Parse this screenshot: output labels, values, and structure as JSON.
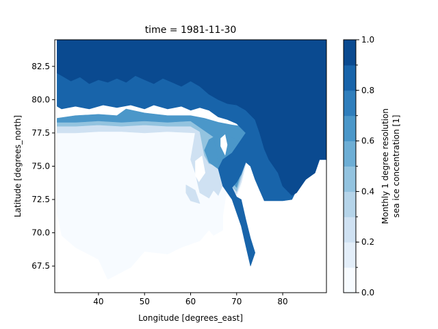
{
  "chart_data": {
    "type": "heatmap",
    "title": "time = 1981-11-30",
    "xlabel": "Longitude [degrees_east]",
    "ylabel": "Latitude [degrees_north]",
    "xlim": [
      30.5,
      89.5
    ],
    "ylim": [
      65.5,
      84.5
    ],
    "xticks": [
      40,
      50,
      60,
      70,
      80
    ],
    "xtick_labels": [
      "40",
      "50",
      "60",
      "70",
      "80"
    ],
    "yticks": [
      67.5,
      70.0,
      72.5,
      75.0,
      77.5,
      80.0,
      82.5
    ],
    "ytick_labels": [
      "67.5",
      "70.0",
      "72.5",
      "75.0",
      "77.5",
      "80.0",
      "82.5"
    ],
    "colorbar": {
      "label_line1": "Monthly 1 degree resolution",
      "label_line2": "sea ice concentration [1]",
      "range": [
        0.0,
        1.0
      ],
      "levels": [
        0.0,
        0.1,
        0.2,
        0.3,
        0.4,
        0.5,
        0.6,
        0.7,
        0.8,
        0.9,
        1.0
      ],
      "ticks": [
        0.0,
        0.2,
        0.4,
        0.6,
        0.8,
        1.0
      ],
      "tick_labels": [
        "0.0",
        "0.2",
        "0.4",
        "0.6",
        "0.8",
        "1.0"
      ],
      "colormap": "Blues",
      "colors": [
        "#f7fbff",
        "#e3eef9",
        "#cfe1f2",
        "#b5d4e9",
        "#93c3df",
        "#6daed5",
        "#4b97c9",
        "#2f7ebc",
        "#1864aa",
        "#0a4a90"
      ]
    },
    "grid": false,
    "contours": [
      {
        "level": 0.05,
        "polygons": [
          [
            [
              31,
              77.8
            ],
            [
              44,
              77.9
            ],
            [
              46,
              78.4
            ],
            [
              50,
              78.2
            ],
            [
              60,
              78.0
            ],
            [
              63,
              77.9
            ],
            [
              66,
              77.8
            ],
            [
              69,
              77.7
            ],
            [
              73,
              77.6
            ],
            [
              74,
              76.8
            ],
            [
              73,
              76.0
            ],
            [
              72,
              75.0
            ],
            [
              71,
              73.5
            ],
            [
              70,
              72.8
            ],
            [
              68,
              73.5
            ],
            [
              67,
              71.3
            ],
            [
              67,
              70.2
            ],
            [
              65,
              69.8
            ],
            [
              64,
              70.2
            ],
            [
              62,
              69.4
            ],
            [
              58,
              68.9
            ],
            [
              55,
              68.4
            ],
            [
              50,
              68.6
            ],
            [
              47,
              67.4
            ],
            [
              42,
              66.5
            ],
            [
              40,
              68.0
            ],
            [
              35,
              68.9
            ],
            [
              32,
              69.8
            ],
            [
              31,
              71.5
            ]
          ]
        ]
      },
      {
        "level": 0.2,
        "polygons": [
          [
            [
              31,
              78.1
            ],
            [
              44,
              78.2
            ],
            [
              46,
              78.6
            ],
            [
              50,
              78.4
            ],
            [
              60,
              78.2
            ],
            [
              63,
              78.0
            ],
            [
              66,
              77.9
            ],
            [
              69,
              77.8
            ],
            [
              73,
              77.7
            ],
            [
              74,
              76.9
            ],
            [
              73,
              76.1
            ],
            [
              72,
              75.2
            ],
            [
              71,
              73.8
            ],
            [
              70,
              72.9
            ],
            [
              67,
              73.6
            ],
            [
              66,
              72.8
            ],
            [
              65,
              73.2
            ],
            [
              64,
              72.6
            ],
            [
              62,
              73.0
            ],
            [
              61,
              74.5
            ],
            [
              60,
              75.5
            ],
            [
              61,
              77.5
            ],
            [
              55,
              77.6
            ],
            [
              50,
              77.5
            ],
            [
              45,
              77.6
            ],
            [
              40,
              77.6
            ],
            [
              35,
              77.5
            ],
            [
              31,
              77.5
            ]
          ],
          [
            [
              59,
              73.6
            ],
            [
              61,
              73.2
            ],
            [
              62,
              72.2
            ],
            [
              60,
              72.4
            ],
            [
              59,
              73.0
            ]
          ]
        ]
      },
      {
        "level": 0.4,
        "polygons": [
          [
            [
              31,
              78.3
            ],
            [
              44,
              78.4
            ],
            [
              46,
              78.8
            ],
            [
              50,
              78.6
            ],
            [
              60,
              78.4
            ],
            [
              63,
              78.2
            ],
            [
              66,
              78.0
            ],
            [
              69,
              77.9
            ],
            [
              73,
              77.8
            ],
            [
              74,
              77.0
            ],
            [
              73,
              76.2
            ],
            [
              72,
              75.4
            ],
            [
              71,
              74.2
            ],
            [
              70,
              73.1
            ],
            [
              67,
              74.2
            ],
            [
              66,
              75.0
            ],
            [
              64,
              75.2
            ],
            [
              63,
              75.8
            ],
            [
              62,
              77.6
            ],
            [
              60,
              78.0
            ],
            [
              55,
              78.0
            ],
            [
              50,
              78.1
            ],
            [
              45,
              78.0
            ],
            [
              40,
              78.1
            ],
            [
              35,
              78.0
            ],
            [
              31,
              78.0
            ]
          ]
        ]
      },
      {
        "level": 0.6,
        "polygons": [
          [
            [
              31,
              78.6
            ],
            [
              35,
              78.8
            ],
            [
              40,
              78.9
            ],
            [
              44,
              78.8
            ],
            [
              46,
              79.3
            ],
            [
              50,
              79.0
            ],
            [
              55,
              78.8
            ],
            [
              60,
              78.8
            ],
            [
              63,
              78.6
            ],
            [
              66,
              78.3
            ],
            [
              69,
              78.1
            ],
            [
              73,
              77.9
            ],
            [
              74,
              77.2
            ],
            [
              73,
              76.4
            ],
            [
              72,
              75.7
            ],
            [
              71,
              74.6
            ],
            [
              70,
              73.4
            ],
            [
              68,
              74.2
            ],
            [
              66,
              74.8
            ],
            [
              64,
              75.3
            ],
            [
              63,
              76.2
            ],
            [
              64,
              77.0
            ],
            [
              66,
              77.4
            ],
            [
              68,
              77.3
            ],
            [
              70,
              77.0
            ],
            [
              71,
              76.2
            ],
            [
              70,
              75.5
            ],
            [
              68,
              75.0
            ],
            [
              66,
              75.4
            ],
            [
              65,
              77.2
            ],
            [
              60,
              78.4
            ],
            [
              55,
              78.3
            ],
            [
              50,
              78.4
            ],
            [
              45,
              78.3
            ],
            [
              40,
              78.4
            ],
            [
              35,
              78.3
            ],
            [
              31,
              78.3
            ]
          ]
        ]
      },
      {
        "level": 0.8,
        "polygons": [
          [
            [
              31,
              84.5
            ],
            [
              89.5,
              84.5
            ],
            [
              89.5,
              75.5
            ],
            [
              88,
              75.5
            ],
            [
              87,
              74.5
            ],
            [
              85,
              74.0
            ],
            [
              83,
              73.2
            ],
            [
              82,
              72.5
            ],
            [
              80,
              72.4
            ],
            [
              78,
              72.4
            ],
            [
              76,
              72.4
            ],
            [
              75,
              73.2
            ],
            [
              74,
              74.0
            ],
            [
              73,
              75.0
            ],
            [
              72,
              75.3
            ],
            [
              71,
              74.4
            ],
            [
              70,
              73.8
            ],
            [
              69,
              73.4
            ],
            [
              70,
              72.7
            ],
            [
              71,
              72.5
            ],
            [
              72,
              71.0
            ],
            [
              73,
              69.6
            ],
            [
              74,
              68.5
            ],
            [
              73,
              67.5
            ],
            [
              72,
              69.0
            ],
            [
              71,
              70.5
            ],
            [
              70,
              71.5
            ],
            [
              69,
              72.5
            ],
            [
              67,
              73.5
            ],
            [
              66,
              74.8
            ],
            [
              67,
              75.5
            ],
            [
              69,
              76.0
            ],
            [
              70,
              76.5
            ],
            [
              71,
              77.0
            ],
            [
              72,
              77.5
            ],
            [
              70,
              78.2
            ],
            [
              68,
              78.5
            ],
            [
              66,
              78.7
            ],
            [
              64,
              79.2
            ],
            [
              62,
              79.4
            ],
            [
              60,
              79.2
            ],
            [
              58,
              79.5
            ],
            [
              55,
              79.3
            ],
            [
              52,
              79.6
            ],
            [
              50,
              79.3
            ],
            [
              47,
              79.6
            ],
            [
              44,
              79.4
            ],
            [
              41,
              79.6
            ],
            [
              38,
              79.3
            ],
            [
              35,
              79.5
            ],
            [
              32,
              79.3
            ],
            [
              31,
              79.5
            ]
          ]
        ]
      },
      {
        "level": 0.9,
        "polygons": [
          [
            [
              31,
              84.5
            ],
            [
              89.5,
              84.5
            ],
            [
              89.5,
              75.5
            ],
            [
              88,
              75.5
            ],
            [
              87,
              74.5
            ],
            [
              85,
              74.0
            ],
            [
              83,
              73.0
            ],
            [
              82,
              72.8
            ],
            [
              80,
              73.5
            ],
            [
              79,
              74.5
            ],
            [
              77,
              75.5
            ],
            [
              76,
              76.3
            ],
            [
              75,
              77.5
            ],
            [
              74,
              78.5
            ],
            [
              72,
              79.2
            ],
            [
              70,
              79.6
            ],
            [
              68,
              79.7
            ],
            [
              66,
              80.0
            ],
            [
              64,
              80.4
            ],
            [
              62,
              81.0
            ],
            [
              60,
              81.4
            ],
            [
              58,
              81.0
            ],
            [
              56,
              81.3
            ],
            [
              54,
              81.6
            ],
            [
              52,
              81.2
            ],
            [
              50,
              81.5
            ],
            [
              48,
              81.8
            ],
            [
              46,
              81.3
            ],
            [
              44,
              81.6
            ],
            [
              42,
              81.3
            ],
            [
              40,
              81.5
            ],
            [
              38,
              81.2
            ],
            [
              36,
              81.7
            ],
            [
              34,
              81.4
            ],
            [
              32,
              81.8
            ],
            [
              31,
              82.0
            ]
          ]
        ]
      }
    ],
    "no_data_regions": [
      [
        [
          66.5,
          76.5
        ],
        [
          67.5,
          75.8
        ],
        [
          68,
          76.6
        ],
        [
          67.5,
          77.4
        ],
        [
          66.5,
          77.1
        ]
      ],
      [
        [
          61.8,
          73.8
        ],
        [
          63.2,
          74.5
        ],
        [
          62.5,
          75.8
        ],
        [
          61.0,
          75.4
        ],
        [
          61.0,
          74.3
        ]
      ]
    ]
  }
}
